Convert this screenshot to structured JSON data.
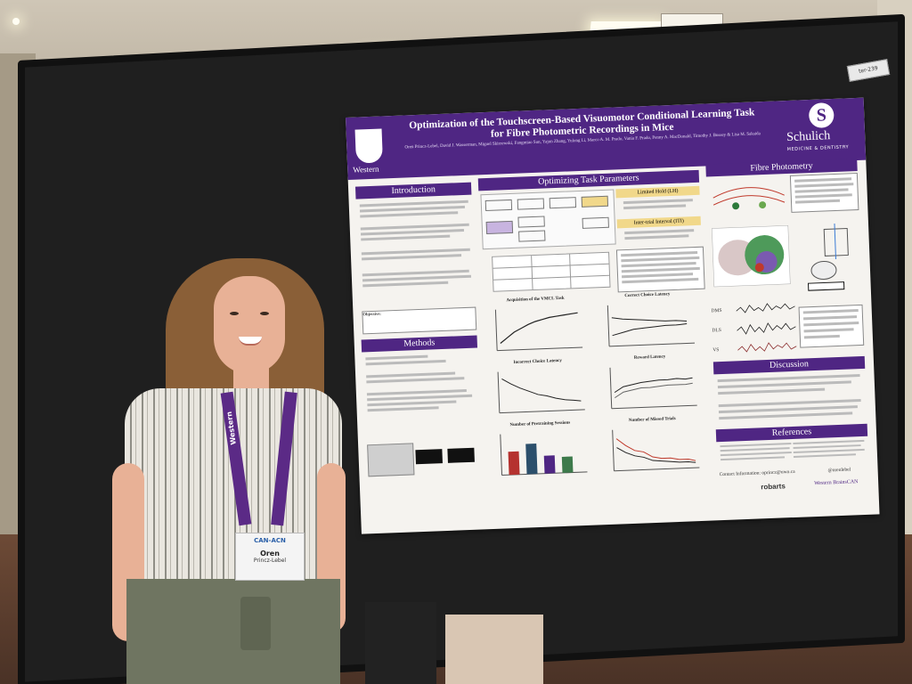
{
  "poster": {
    "title_line1": "Optimization of the Touchscreen-Based Visuomotor Conditional Learning Task",
    "title_line2": "for Fibre Photometric Recordings in Mice",
    "authors": "Oren Princz-Lebel, David J. Wasserman, Miguel Skirzewski, Fangmiao Sun, Yajun Zhang, Yulong Li, Marco A. M. Prado, Vania F. Prado, Penny A. MacDonald, Timothy J. Bussey & Lisa M. Saksida",
    "university": "Western",
    "school_name": "Schulich",
    "school_sub": "MEDICINE & DENTISTRY",
    "tag": "ter-239",
    "sections": {
      "introduction": "Introduction",
      "methods": "Methods",
      "optimizing": "Optimizing Task Parameters",
      "fibre": "Fibre Photometry",
      "discussion": "Discussion",
      "references": "References"
    },
    "limited_hold": "Limited Hold (LH)",
    "iti": "Inter-trial Interval (ITI)",
    "objective_label": "Objective:",
    "plots": [
      "Acquisition of the VMCL Task",
      "Correct Choice Latency",
      "Incorrect Choice Latency",
      "Reward Latency",
      "Number of Pretraining Sessions",
      "Number of Missed Trials"
    ],
    "regions": [
      "DMS",
      "DLS",
      "VS"
    ],
    "contact": "Contact Information: oprincz@uwo.ca",
    "twitter": "@orenlebel",
    "logos": [
      "robarts",
      "Western BrainsCAN"
    ]
  },
  "badge": {
    "org": "CAN-ACN",
    "name": "Oren",
    "surname": "Princz-Lebel"
  },
  "lanyard_text": "Western",
  "colors": {
    "purple": "#4f2683",
    "board": "#1f1f1f"
  }
}
